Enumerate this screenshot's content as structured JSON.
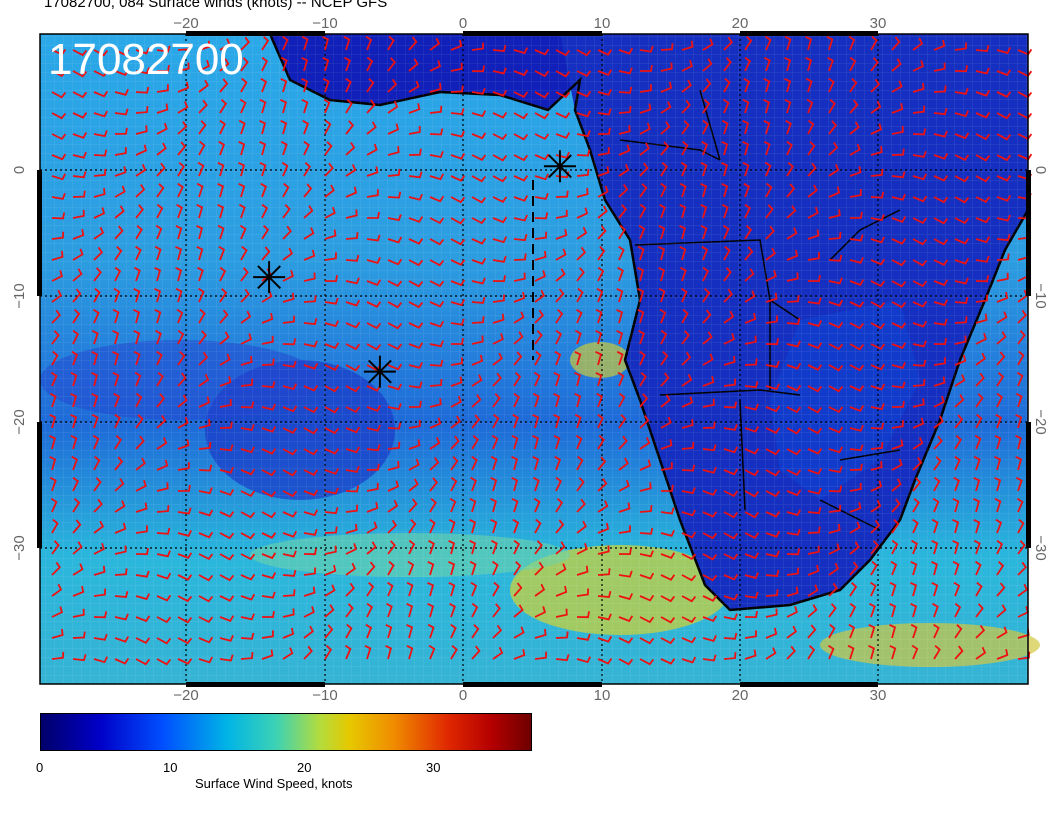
{
  "title": "17082700, 084 Surface winds (knots) -- NCEP GFS",
  "timestamp_label": "17082700",
  "axes": {
    "lon_ticks_top": [
      "−20",
      "−10",
      "0",
      "10",
      "20",
      "30"
    ],
    "lon_ticks_bottom": [
      "−20",
      "−10",
      "0",
      "10",
      "20",
      "30"
    ],
    "lat_ticks_left": [
      "0",
      "−10",
      "−20",
      "−30"
    ],
    "lat_ticks_right": [
      "0",
      "−10",
      "−20",
      "−30"
    ]
  },
  "colorbar": {
    "label": "Surface Wind Speed, knots",
    "ticks": [
      "0",
      "10",
      "20",
      "30"
    ],
    "colors": [
      "#00006a",
      "#0000c8",
      "#0050ff",
      "#00b4e6",
      "#3cd2b4",
      "#b4dc3c",
      "#e6c800",
      "#f08c00",
      "#e02800",
      "#b40000",
      "#6e0000"
    ]
  },
  "barb_color": "#ee1111",
  "markers": [
    {
      "name": "asterisk-marker",
      "lon": 7,
      "lat": 0.3
    },
    {
      "name": "asterisk-marker",
      "lon": -14,
      "lat": -8.5
    },
    {
      "name": "asterisk-marker",
      "lon": -6,
      "lat": -16
    }
  ]
}
